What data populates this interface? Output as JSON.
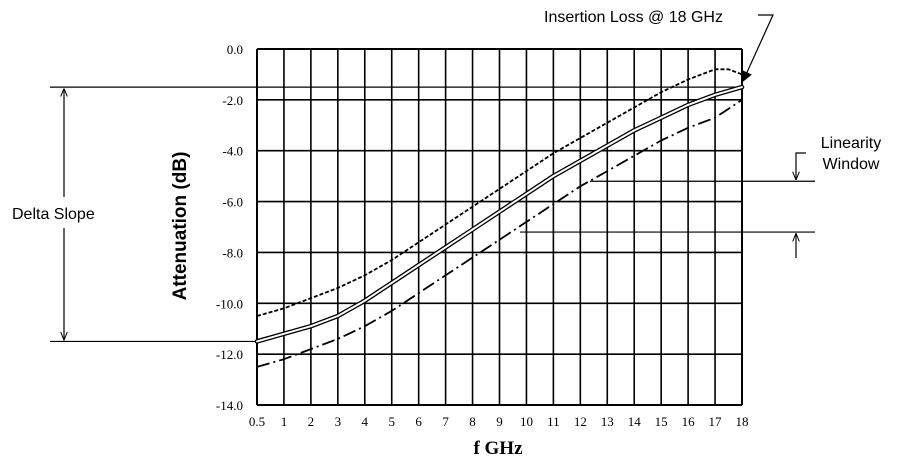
{
  "chart_data": {
    "type": "line",
    "xlabel": "f GHz",
    "ylabel": "Attenuation (dB)",
    "x_ticks": [
      "0.5",
      "1",
      "2",
      "3",
      "4",
      "5",
      "6",
      "7",
      "8",
      "9",
      "10",
      "11",
      "12",
      "13",
      "14",
      "15",
      "16",
      "17",
      "18"
    ],
    "y_ticks": [
      "0.0",
      "-2.0",
      "-4.0",
      "-6.0",
      "-8.0",
      "-10.0",
      "-12.0",
      "-14.0"
    ],
    "ylim": [
      -14,
      0
    ],
    "grid": true,
    "series": [
      {
        "style": "solid",
        "x": [
          0.5,
          1,
          2,
          3,
          4,
          5,
          6,
          7,
          8,
          9,
          10,
          11,
          12,
          13,
          14,
          15,
          16,
          17,
          18
        ],
        "y": [
          -11.5,
          -11.2,
          -10.9,
          -10.5,
          -9.9,
          -9.2,
          -8.5,
          -7.8,
          -7.1,
          -6.4,
          -5.7,
          -5.0,
          -4.4,
          -3.8,
          -3.2,
          -2.7,
          -2.2,
          -1.8,
          -1.5
        ]
      },
      {
        "style": "dashed",
        "x": [
          0.5,
          1,
          2,
          3,
          4,
          5,
          6,
          7,
          8,
          9,
          10,
          11,
          12,
          13,
          14,
          15,
          16,
          17,
          17.5,
          18
        ],
        "y": [
          -10.5,
          -10.2,
          -9.8,
          -9.4,
          -8.9,
          -8.3,
          -7.6,
          -6.9,
          -6.2,
          -5.5,
          -4.8,
          -4.1,
          -3.5,
          -2.9,
          -2.3,
          -1.7,
          -1.2,
          -0.8,
          -0.8,
          -1.0
        ]
      },
      {
        "style": "dash-dot",
        "x": [
          0.5,
          1,
          2,
          3,
          4,
          5,
          6,
          7,
          8,
          9,
          10,
          11,
          12,
          13,
          14,
          15,
          16,
          17,
          18
        ],
        "y": [
          -12.5,
          -12.2,
          -11.8,
          -11.4,
          -10.9,
          -10.3,
          -9.6,
          -8.9,
          -8.2,
          -7.5,
          -6.8,
          -6.1,
          -5.4,
          -4.8,
          -4.2,
          -3.6,
          -3.1,
          -2.7,
          -2.0
        ]
      }
    ],
    "annotations": {
      "insertion_loss": "Insertion Loss @ 18 GHz",
      "linearity_line1": "Linearity",
      "linearity_line2": "Window",
      "delta_slope": "Delta Slope"
    },
    "reference_levels": {
      "delta_slope_top": -1.5,
      "delta_slope_bottom": -11.5,
      "linearity_top": -5.2,
      "linearity_bottom": -7.2
    },
    "colors": {
      "lines": "#000000",
      "grid": "#000000",
      "background": "#ffffff"
    }
  }
}
